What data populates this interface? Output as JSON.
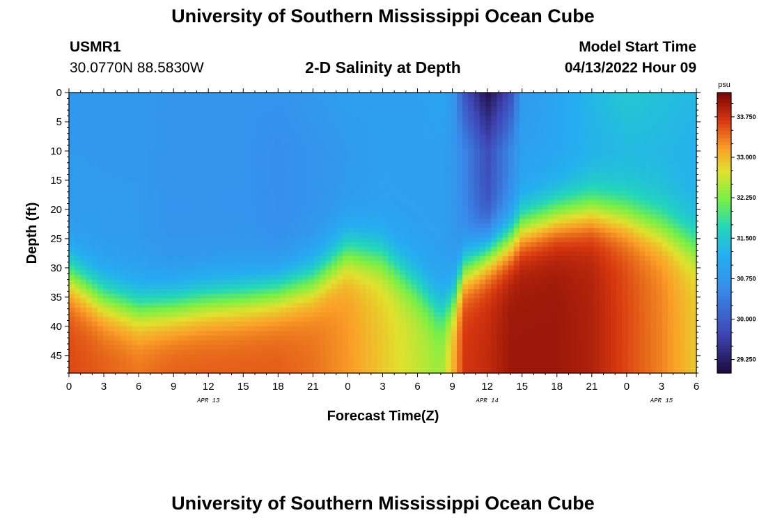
{
  "header": {
    "title": "University of Southern Mississippi Ocean Cube",
    "station_id": "USMR1",
    "station_coords": "30.0770N  88.5830W",
    "plot_title": "2-D Salinity at Depth",
    "start_label": "Model Start Time",
    "start_value": "04/13/2022 Hour 09"
  },
  "footer": {
    "title": "University of Southern Mississippi Ocean Cube"
  },
  "chart_data": {
    "type": "heatmap",
    "title": "2-D Salinity at Depth",
    "xlabel": "Forecast Time(Z)",
    "ylabel": "Depth (ft)",
    "x_ticks": [
      "0",
      "3",
      "6",
      "9",
      "12",
      "15",
      "18",
      "21",
      "0",
      "3",
      "6",
      "9",
      "12",
      "15",
      "18",
      "21",
      "0",
      "3",
      "6"
    ],
    "x_tick_hours": [
      0,
      3,
      6,
      9,
      12,
      15,
      18,
      21,
      24,
      27,
      30,
      33,
      36,
      39,
      42,
      45,
      48,
      51,
      54
    ],
    "xlim": [
      0,
      54
    ],
    "date_labels": [
      {
        "label": "APR 13",
        "hour": 12
      },
      {
        "label": "APR 14",
        "hour": 36
      },
      {
        "label": "APR 15",
        "hour": 51
      }
    ],
    "y_ticks": [
      0,
      5,
      10,
      15,
      20,
      25,
      30,
      35,
      40,
      45
    ],
    "ylim": [
      0,
      48
    ],
    "colorbar": {
      "unit": "psu",
      "ticks": [
        "33.750",
        "33.000",
        "32.250",
        "31.500",
        "30.750",
        "30.000",
        "29.250"
      ],
      "range": [
        29.0,
        34.2
      ]
    },
    "salinity_profiles": [
      {
        "hour": 0,
        "surface": 30.8,
        "d10": 30.8,
        "interface": 31,
        "bottom": 33.6
      },
      {
        "hour": 3,
        "surface": 30.8,
        "d10": 30.8,
        "interface": 35,
        "bottom": 33.5
      },
      {
        "hour": 6,
        "surface": 30.8,
        "d10": 30.8,
        "interface": 37,
        "bottom": 33.4
      },
      {
        "hour": 9,
        "surface": 30.7,
        "d10": 30.7,
        "interface": 36.5,
        "bottom": 33.5
      },
      {
        "hour": 12,
        "surface": 30.7,
        "d10": 30.7,
        "interface": 35.5,
        "bottom": 33.5
      },
      {
        "hour": 15,
        "surface": 30.7,
        "d10": 30.7,
        "interface": 35,
        "bottom": 33.5
      },
      {
        "hour": 18,
        "surface": 30.7,
        "d10": 30.6,
        "interface": 34,
        "bottom": 33.5
      },
      {
        "hour": 21,
        "surface": 30.8,
        "d10": 30.7,
        "interface": 32,
        "bottom": 33.4
      },
      {
        "hour": 24,
        "surface": 30.9,
        "d10": 30.8,
        "interface": 27,
        "bottom": 33.2
      },
      {
        "hour": 27,
        "surface": 30.9,
        "d10": 30.9,
        "interface": 28,
        "bottom": 32.9
      },
      {
        "hour": 30,
        "surface": 30.9,
        "d10": 30.9,
        "interface": 33,
        "bottom": 32.6
      },
      {
        "hour": 32,
        "surface": 31.0,
        "d10": 30.9,
        "interface": 37.5,
        "bottom": 32.4
      },
      {
        "hour": 33,
        "surface": 30.8,
        "d10": 30.8,
        "interface": 36,
        "bottom": 33.0
      },
      {
        "hour": 34,
        "surface": 29.9,
        "d10": 30.5,
        "interface": 30,
        "bottom": 33.7
      },
      {
        "hour": 36,
        "surface": 29.1,
        "d10": 29.8,
        "interface": 27,
        "bottom": 33.8
      },
      {
        "hour": 38,
        "surface": 29.8,
        "d10": 30.5,
        "interface": 25,
        "bottom": 34.0
      },
      {
        "hour": 39,
        "surface": 30.8,
        "d10": 30.9,
        "interface": 23,
        "bottom": 34.0
      },
      {
        "hour": 42,
        "surface": 31.0,
        "d10": 31.0,
        "interface": 21,
        "bottom": 34.0
      },
      {
        "hour": 45,
        "surface": 31.3,
        "d10": 31.2,
        "interface": 20,
        "bottom": 33.9
      },
      {
        "hour": 48,
        "surface": 31.5,
        "d10": 31.3,
        "interface": 21,
        "bottom": 33.6
      },
      {
        "hour": 51,
        "surface": 31.4,
        "d10": 31.3,
        "interface": 23,
        "bottom": 33.3
      },
      {
        "hour": 54,
        "surface": 31.3,
        "d10": 31.2,
        "interface": 26,
        "bottom": 32.9
      }
    ]
  }
}
